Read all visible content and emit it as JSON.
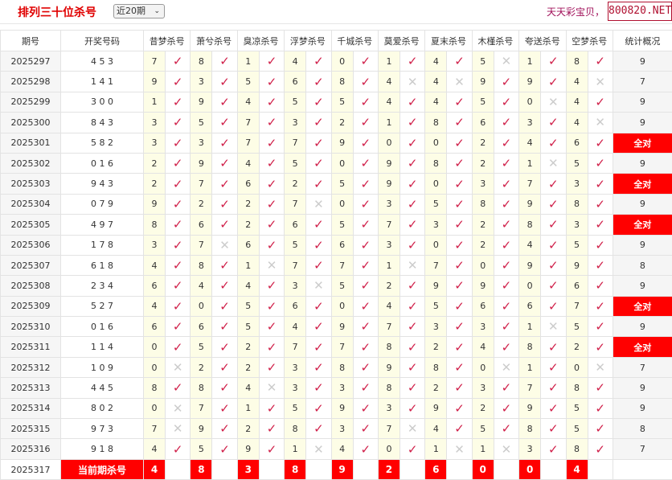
{
  "header": {
    "title": "排列三十位杀号",
    "period_select": "近20期",
    "slogan": "天天彩宝贝，",
    "brand": "800820.NET"
  },
  "table": {
    "columns": [
      "期号",
      "开奖号码",
      "昔梦杀号",
      "萧兮杀号",
      "臭凉杀号",
      "浮梦杀号",
      "千城杀号",
      "莫爱杀号",
      "夏末杀号",
      "木槿杀号",
      "夸送杀号",
      "空梦杀号",
      "统计概况"
    ],
    "rows": [
      {
        "issue": "2025297",
        "draw": "4 5 3",
        "kills": [
          [
            7,
            1
          ],
          [
            8,
            1
          ],
          [
            1,
            1
          ],
          [
            4,
            1
          ],
          [
            0,
            1
          ],
          [
            1,
            1
          ],
          [
            4,
            1
          ],
          [
            5,
            0
          ],
          [
            1,
            1
          ],
          [
            8,
            1
          ]
        ],
        "stat": "9"
      },
      {
        "issue": "2025298",
        "draw": "1 4 1",
        "kills": [
          [
            9,
            1
          ],
          [
            3,
            1
          ],
          [
            5,
            1
          ],
          [
            6,
            1
          ],
          [
            8,
            1
          ],
          [
            4,
            0
          ],
          [
            4,
            0
          ],
          [
            9,
            1
          ],
          [
            9,
            1
          ],
          [
            4,
            0
          ]
        ],
        "stat": "7"
      },
      {
        "issue": "2025299",
        "draw": "3 0 0",
        "kills": [
          [
            1,
            1
          ],
          [
            9,
            1
          ],
          [
            4,
            1
          ],
          [
            5,
            1
          ],
          [
            5,
            1
          ],
          [
            4,
            1
          ],
          [
            4,
            1
          ],
          [
            5,
            1
          ],
          [
            0,
            0
          ],
          [
            4,
            1
          ]
        ],
        "stat": "9"
      },
      {
        "issue": "2025300",
        "draw": "8 4 3",
        "kills": [
          [
            3,
            1
          ],
          [
            5,
            1
          ],
          [
            7,
            1
          ],
          [
            3,
            1
          ],
          [
            2,
            1
          ],
          [
            1,
            1
          ],
          [
            8,
            1
          ],
          [
            6,
            1
          ],
          [
            3,
            1
          ],
          [
            4,
            0
          ]
        ],
        "stat": "9"
      },
      {
        "issue": "2025301",
        "draw": "5 8 2",
        "kills": [
          [
            3,
            1
          ],
          [
            3,
            1
          ],
          [
            7,
            1
          ],
          [
            7,
            1
          ],
          [
            9,
            1
          ],
          [
            0,
            1
          ],
          [
            0,
            1
          ],
          [
            2,
            1
          ],
          [
            4,
            1
          ],
          [
            6,
            1
          ]
        ],
        "stat": "全对"
      },
      {
        "issue": "2025302",
        "draw": "0 1 6",
        "kills": [
          [
            2,
            1
          ],
          [
            9,
            1
          ],
          [
            4,
            1
          ],
          [
            5,
            1
          ],
          [
            0,
            1
          ],
          [
            9,
            1
          ],
          [
            8,
            1
          ],
          [
            2,
            1
          ],
          [
            1,
            0
          ],
          [
            5,
            1
          ]
        ],
        "stat": "9"
      },
      {
        "issue": "2025303",
        "draw": "9 4 3",
        "kills": [
          [
            2,
            1
          ],
          [
            7,
            1
          ],
          [
            6,
            1
          ],
          [
            2,
            1
          ],
          [
            5,
            1
          ],
          [
            9,
            1
          ],
          [
            0,
            1
          ],
          [
            3,
            1
          ],
          [
            7,
            1
          ],
          [
            3,
            1
          ]
        ],
        "stat": "全对"
      },
      {
        "issue": "2025304",
        "draw": "0 7 9",
        "kills": [
          [
            9,
            1
          ],
          [
            2,
            1
          ],
          [
            2,
            1
          ],
          [
            7,
            0
          ],
          [
            0,
            1
          ],
          [
            3,
            1
          ],
          [
            5,
            1
          ],
          [
            8,
            1
          ],
          [
            9,
            1
          ],
          [
            8,
            1
          ]
        ],
        "stat": "9"
      },
      {
        "issue": "2025305",
        "draw": "4 9 7",
        "kills": [
          [
            8,
            1
          ],
          [
            6,
            1
          ],
          [
            2,
            1
          ],
          [
            6,
            1
          ],
          [
            5,
            1
          ],
          [
            7,
            1
          ],
          [
            3,
            1
          ],
          [
            2,
            1
          ],
          [
            8,
            1
          ],
          [
            3,
            1
          ]
        ],
        "stat": "全对"
      },
      {
        "issue": "2025306",
        "draw": "1 7 8",
        "kills": [
          [
            3,
            1
          ],
          [
            7,
            0
          ],
          [
            6,
            1
          ],
          [
            5,
            1
          ],
          [
            6,
            1
          ],
          [
            3,
            1
          ],
          [
            0,
            1
          ],
          [
            2,
            1
          ],
          [
            4,
            1
          ],
          [
            5,
            1
          ]
        ],
        "stat": "9"
      },
      {
        "issue": "2025307",
        "draw": "6 1 8",
        "kills": [
          [
            4,
            1
          ],
          [
            8,
            1
          ],
          [
            1,
            0
          ],
          [
            7,
            1
          ],
          [
            7,
            1
          ],
          [
            1,
            0
          ],
          [
            7,
            1
          ],
          [
            0,
            1
          ],
          [
            9,
            1
          ],
          [
            9,
            1
          ]
        ],
        "stat": "8"
      },
      {
        "issue": "2025308",
        "draw": "2 3 4",
        "kills": [
          [
            6,
            1
          ],
          [
            4,
            1
          ],
          [
            4,
            1
          ],
          [
            3,
            0
          ],
          [
            5,
            1
          ],
          [
            2,
            1
          ],
          [
            9,
            1
          ],
          [
            9,
            1
          ],
          [
            0,
            1
          ],
          [
            6,
            1
          ]
        ],
        "stat": "9"
      },
      {
        "issue": "2025309",
        "draw": "5 2 7",
        "kills": [
          [
            4,
            1
          ],
          [
            0,
            1
          ],
          [
            5,
            1
          ],
          [
            6,
            1
          ],
          [
            0,
            1
          ],
          [
            4,
            1
          ],
          [
            5,
            1
          ],
          [
            6,
            1
          ],
          [
            6,
            1
          ],
          [
            7,
            1
          ]
        ],
        "stat": "全对"
      },
      {
        "issue": "2025310",
        "draw": "0 1 6",
        "kills": [
          [
            6,
            1
          ],
          [
            6,
            1
          ],
          [
            5,
            1
          ],
          [
            4,
            1
          ],
          [
            9,
            1
          ],
          [
            7,
            1
          ],
          [
            3,
            1
          ],
          [
            3,
            1
          ],
          [
            1,
            0
          ],
          [
            5,
            1
          ]
        ],
        "stat": "9"
      },
      {
        "issue": "2025311",
        "draw": "1 1 4",
        "kills": [
          [
            0,
            1
          ],
          [
            5,
            1
          ],
          [
            2,
            1
          ],
          [
            7,
            1
          ],
          [
            7,
            1
          ],
          [
            8,
            1
          ],
          [
            2,
            1
          ],
          [
            4,
            1
          ],
          [
            8,
            1
          ],
          [
            2,
            1
          ]
        ],
        "stat": "全对"
      },
      {
        "issue": "2025312",
        "draw": "1 0 9",
        "kills": [
          [
            0,
            0
          ],
          [
            2,
            1
          ],
          [
            2,
            1
          ],
          [
            3,
            1
          ],
          [
            8,
            1
          ],
          [
            9,
            1
          ],
          [
            8,
            1
          ],
          [
            0,
            0
          ],
          [
            1,
            1
          ],
          [
            0,
            0
          ]
        ],
        "stat": "7"
      },
      {
        "issue": "2025313",
        "draw": "4 4 5",
        "kills": [
          [
            8,
            1
          ],
          [
            8,
            1
          ],
          [
            4,
            0
          ],
          [
            3,
            1
          ],
          [
            3,
            1
          ],
          [
            8,
            1
          ],
          [
            2,
            1
          ],
          [
            3,
            1
          ],
          [
            7,
            1
          ],
          [
            8,
            1
          ]
        ],
        "stat": "9"
      },
      {
        "issue": "2025314",
        "draw": "8 0 2",
        "kills": [
          [
            0,
            0
          ],
          [
            7,
            1
          ],
          [
            1,
            1
          ],
          [
            5,
            1
          ],
          [
            9,
            1
          ],
          [
            3,
            1
          ],
          [
            9,
            1
          ],
          [
            2,
            1
          ],
          [
            9,
            1
          ],
          [
            5,
            1
          ]
        ],
        "stat": "9"
      },
      {
        "issue": "2025315",
        "draw": "9 7 3",
        "kills": [
          [
            7,
            0
          ],
          [
            9,
            1
          ],
          [
            2,
            1
          ],
          [
            8,
            1
          ],
          [
            3,
            1
          ],
          [
            7,
            0
          ],
          [
            4,
            1
          ],
          [
            5,
            1
          ],
          [
            8,
            1
          ],
          [
            5,
            1
          ]
        ],
        "stat": "8"
      },
      {
        "issue": "2025316",
        "draw": "9 1 8",
        "kills": [
          [
            4,
            1
          ],
          [
            5,
            1
          ],
          [
            9,
            1
          ],
          [
            1,
            0
          ],
          [
            4,
            1
          ],
          [
            0,
            1
          ],
          [
            1,
            0
          ],
          [
            1,
            0
          ],
          [
            3,
            1
          ],
          [
            8,
            1
          ]
        ],
        "stat": "7"
      }
    ],
    "current": {
      "issue": "2025317",
      "label": "当前期杀号",
      "kills": [
        "4",
        "8",
        "3",
        "8",
        "9",
        "2",
        "6",
        "0",
        "0",
        "4"
      ]
    }
  },
  "marks": {
    "hit": "✓",
    "miss": "✕",
    "hit_color": "#d0204a",
    "miss_color": "#cccccc",
    "highlight": "#ff0000"
  }
}
